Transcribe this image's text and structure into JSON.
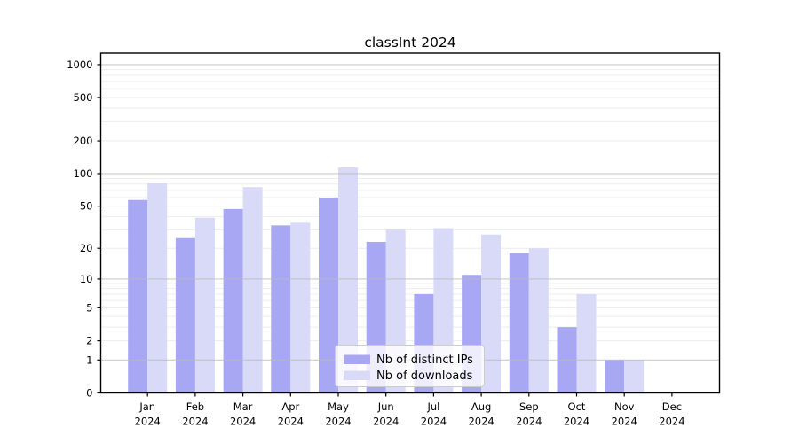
{
  "chart_data": {
    "type": "bar",
    "title": "classInt 2024",
    "categories": [
      "Jan",
      "Feb",
      "Mar",
      "Apr",
      "May",
      "Jun",
      "Jul",
      "Aug",
      "Sep",
      "Oct",
      "Nov",
      "Dec"
    ],
    "year_label": "2024",
    "series": [
      {
        "name": "Nb of distinct IPs",
        "color": "#a7a7f3",
        "values": [
          57,
          25,
          47,
          33,
          60,
          23,
          7,
          11,
          18,
          3,
          1,
          0
        ]
      },
      {
        "name": "Nb of downloads",
        "color": "#d9d9f8",
        "values": [
          82,
          39,
          75,
          35,
          114,
          30,
          31,
          27,
          20,
          7,
          1,
          0
        ]
      }
    ],
    "yscale": "log1p",
    "yticks": [
      0,
      1,
      2,
      5,
      10,
      20,
      50,
      100,
      200,
      500,
      1000
    ],
    "ylim": [
      0,
      1260
    ],
    "grid": true,
    "legend_position": "inside-bottom-center"
  },
  "colors": {
    "major_grid": "#b9b9b9",
    "minor_grid": "#ededed",
    "axis": "#000000",
    "text": "#1a1a1a",
    "legend_border": "#cccccc",
    "legend_bg_alpha": "0.8"
  }
}
